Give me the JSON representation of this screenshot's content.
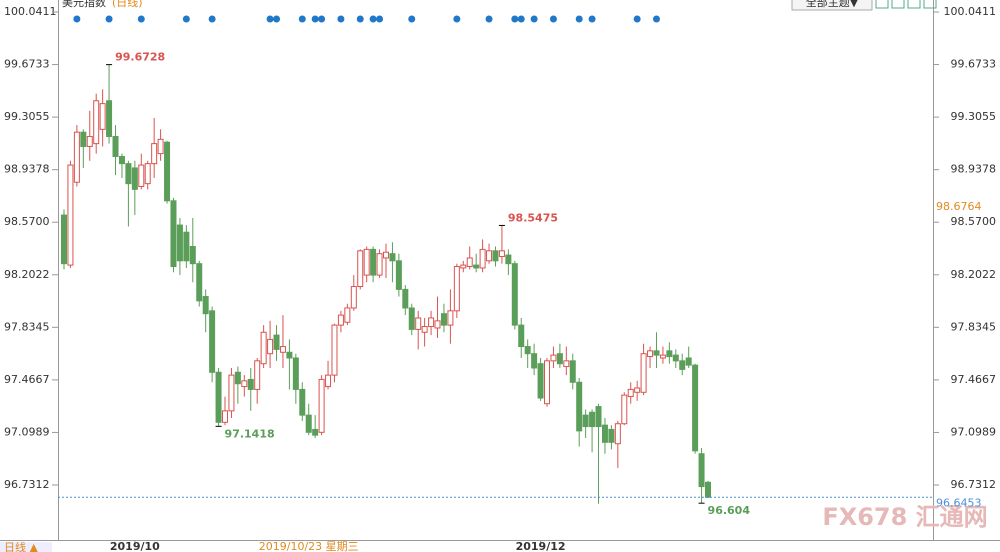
{
  "chart_data": {
    "type": "candlestick",
    "title": "美元指数",
    "period_label": "(日线)",
    "theme_button": "全部主题▼",
    "period_button": "日线 ▲",
    "watermark": "FX678 汇通网",
    "ylim": [
      96.3463,
      100.0411
    ],
    "yticks": [
      100.0411,
      99.6733,
      99.3055,
      98.9378,
      {
        "value": 98.57,
        "label": "98.5700"
      },
      98.2022,
      97.8345,
      97.4667,
      97.0989,
      96.7312
    ],
    "x_labels": [
      {
        "index": 11,
        "label": "2019/10"
      },
      {
        "index": 74,
        "label": "2019/12"
      }
    ],
    "cursor": {
      "index": 38,
      "date_label": "2019/10/23 星期三",
      "price": 98.6764
    },
    "last_price": 96.6453,
    "up_color": "#d9534f",
    "down_color": "#5a9e5a",
    "marker_color": "#1f78c8",
    "annotations": [
      {
        "index": 7,
        "value": 99.6728,
        "color": "#d9534f"
      },
      {
        "index": 24,
        "value": 97.1418,
        "color": "#5a9e5a"
      },
      {
        "index": 68,
        "value": 98.5475,
        "color": "#d9534f"
      },
      {
        "index": 99,
        "value": 96.604,
        "color": "#5a9e5a"
      }
    ],
    "event_markers": [
      2,
      7,
      12,
      19,
      23,
      32,
      33,
      37,
      39,
      40,
      43,
      46,
      48,
      49,
      54,
      61,
      66,
      70,
      71,
      73,
      76,
      80,
      82,
      89,
      92
    ],
    "candles": [
      [
        98.62,
        98.66,
        98.24,
        98.28
      ],
      [
        98.27,
        99.0,
        98.25,
        98.97
      ],
      [
        98.85,
        99.25,
        98.82,
        99.2
      ],
      [
        99.2,
        99.22,
        98.95,
        99.1
      ],
      [
        99.1,
        99.35,
        99.0,
        99.17
      ],
      [
        99.12,
        99.47,
        99.05,
        99.42
      ],
      [
        99.22,
        99.5,
        99.1,
        99.4
      ],
      [
        99.42,
        99.6728,
        99.12,
        99.17
      ],
      [
        99.17,
        99.25,
        98.9,
        99.03
      ],
      [
        99.03,
        99.05,
        98.88,
        98.98
      ],
      [
        98.98,
        99.0,
        98.54,
        98.84
      ],
      [
        98.95,
        99.0,
        98.62,
        98.8
      ],
      [
        98.82,
        99.05,
        98.8,
        98.97
      ],
      [
        98.84,
        99.0,
        98.8,
        98.98
      ],
      [
        98.98,
        99.3,
        98.88,
        99.12
      ],
      [
        99.05,
        99.22,
        99.0,
        99.15
      ],
      [
        99.13,
        99.14,
        98.7,
        98.72
      ],
      [
        98.72,
        98.74,
        98.22,
        98.26
      ],
      [
        98.55,
        98.6,
        98.2,
        98.3
      ],
      [
        98.5,
        98.55,
        98.25,
        98.3
      ],
      [
        98.4,
        98.6,
        98.15,
        98.28
      ],
      [
        98.28,
        98.3,
        97.98,
        98.02
      ],
      [
        98.05,
        98.1,
        97.8,
        97.93
      ],
      [
        97.95,
        97.98,
        97.45,
        97.52
      ],
      [
        97.52,
        97.55,
        97.1418,
        97.17
      ],
      [
        97.17,
        97.35,
        97.15,
        97.25
      ],
      [
        97.25,
        97.55,
        97.2,
        97.5
      ],
      [
        97.52,
        97.56,
        97.3,
        97.44
      ],
      [
        97.42,
        97.5,
        97.35,
        97.46
      ],
      [
        97.47,
        97.55,
        97.25,
        97.4
      ],
      [
        97.4,
        97.62,
        97.3,
        97.6
      ],
      [
        97.58,
        97.85,
        97.55,
        97.8
      ],
      [
        97.65,
        97.88,
        97.55,
        97.75
      ],
      [
        97.78,
        97.85,
        97.6,
        97.68
      ],
      [
        97.66,
        97.92,
        97.55,
        97.7
      ],
      [
        97.66,
        97.75,
        97.4,
        97.62
      ],
      [
        97.62,
        97.65,
        97.3,
        97.4
      ],
      [
        97.4,
        97.45,
        97.18,
        97.22
      ],
      [
        97.22,
        97.3,
        97.08,
        97.1
      ],
      [
        97.12,
        97.22,
        97.06,
        97.08
      ],
      [
        97.1,
        97.5,
        97.08,
        97.47
      ],
      [
        97.42,
        97.6,
        97.4,
        97.5
      ],
      [
        97.5,
        97.86,
        97.45,
        97.85
      ],
      [
        97.85,
        97.95,
        97.8,
        97.92
      ],
      [
        97.87,
        98.0,
        97.85,
        97.97
      ],
      [
        97.97,
        98.2,
        97.95,
        98.12
      ],
      [
        98.12,
        98.38,
        98.1,
        98.37
      ],
      [
        98.2,
        98.4,
        98.15,
        98.38
      ],
      [
        98.38,
        98.4,
        98.15,
        98.2
      ],
      [
        98.2,
        98.38,
        98.18,
        98.35
      ],
      [
        98.32,
        98.42,
        98.18,
        98.36
      ],
      [
        98.35,
        98.43,
        98.15,
        98.3
      ],
      [
        98.3,
        98.35,
        98.05,
        98.1
      ],
      [
        98.1,
        98.13,
        97.92,
        97.97
      ],
      [
        97.97,
        98.0,
        97.78,
        97.82
      ],
      [
        97.82,
        97.95,
        97.68,
        97.9
      ],
      [
        97.8,
        97.9,
        97.7,
        97.84
      ],
      [
        97.84,
        97.95,
        97.78,
        97.9
      ],
      [
        97.83,
        98.05,
        97.76,
        97.88
      ],
      [
        97.93,
        98.0,
        97.8,
        97.85
      ],
      [
        97.85,
        98.1,
        97.72,
        97.95
      ],
      [
        97.95,
        98.28,
        97.9,
        98.26
      ],
      [
        98.25,
        98.3,
        98.22,
        98.27
      ],
      [
        98.26,
        98.4,
        98.24,
        98.32
      ],
      [
        98.27,
        98.35,
        98.22,
        98.25
      ],
      [
        98.25,
        98.45,
        98.22,
        98.38
      ],
      [
        98.3,
        98.42,
        98.28,
        98.37
      ],
      [
        98.37,
        98.4,
        98.26,
        98.3
      ],
      [
        98.33,
        98.5475,
        98.28,
        98.37
      ],
      [
        98.34,
        98.38,
        98.2,
        98.28
      ],
      [
        98.28,
        98.3,
        97.82,
        97.85
      ],
      [
        97.85,
        97.9,
        97.62,
        97.7
      ],
      [
        97.7,
        97.75,
        97.55,
        97.65
      ],
      [
        97.65,
        97.72,
        97.5,
        97.55
      ],
      [
        97.58,
        97.62,
        97.32,
        97.34
      ],
      [
        97.3,
        97.62,
        97.28,
        97.6
      ],
      [
        97.6,
        97.7,
        97.55,
        97.64
      ],
      [
        97.65,
        97.72,
        97.55,
        97.58
      ],
      [
        97.56,
        97.7,
        97.5,
        97.6
      ],
      [
        97.6,
        97.65,
        97.4,
        97.45
      ],
      [
        97.45,
        97.48,
        97.0,
        97.11
      ],
      [
        97.22,
        97.26,
        97.06,
        97.14
      ],
      [
        97.24,
        97.26,
        96.96,
        97.14
      ],
      [
        97.28,
        97.3,
        96.6,
        97.14
      ],
      [
        97.15,
        97.2,
        96.95,
        97.03
      ],
      [
        97.12,
        97.15,
        96.98,
        97.03
      ],
      [
        97.02,
        97.18,
        96.85,
        97.16
      ],
      [
        97.16,
        97.38,
        97.15,
        97.36
      ],
      [
        97.35,
        97.45,
        97.3,
        97.4
      ],
      [
        97.38,
        97.46,
        97.32,
        97.41
      ],
      [
        97.38,
        97.72,
        97.36,
        97.65
      ],
      [
        97.63,
        97.7,
        97.55,
        97.67
      ],
      [
        97.67,
        97.8,
        97.55,
        97.64
      ],
      [
        97.62,
        97.7,
        97.58,
        97.64
      ],
      [
        97.67,
        97.73,
        97.58,
        97.63
      ],
      [
        97.64,
        97.68,
        97.55,
        97.6
      ],
      [
        97.6,
        97.65,
        97.5,
        97.54
      ],
      [
        97.62,
        97.7,
        97.55,
        97.57
      ],
      [
        97.57,
        97.58,
        96.95,
        96.97
      ],
      [
        96.95,
        96.99,
        96.604,
        96.72
      ],
      [
        96.75,
        96.76,
        96.64,
        96.6453
      ]
    ]
  }
}
